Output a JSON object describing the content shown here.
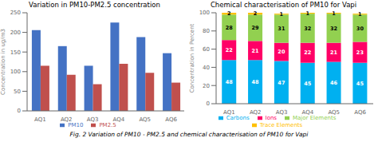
{
  "caption": "Fig. 2 Variation of PM10 - PM2.5 and chemical characterisation of PM10 for Vapi",
  "chart_data": [
    {
      "type": "bar",
      "title": "Variation in PM10-PM2.5 concentration",
      "ylabel": "Concentration in ug/m3",
      "categories": [
        "AQ1",
        "AQ2",
        "AQ3",
        "AQ4",
        "AQ5",
        "AQ6"
      ],
      "series": [
        {
          "name": "PM10",
          "color": "#4472C4",
          "values": [
            206,
            165,
            115,
            225,
            188,
            147
          ]
        },
        {
          "name": "PM2.5",
          "color": "#C0504D",
          "values": [
            115,
            92,
            68,
            120,
            97,
            72
          ]
        }
      ],
      "ylim": [
        0,
        250
      ],
      "yticks": [
        0,
        50,
        100,
        150,
        200,
        250
      ],
      "grid": false,
      "legend": "bottom"
    },
    {
      "type": "bar",
      "title": "Chemical characterisation of PM10 for Vapi",
      "ylabel": "Concentration in Percent",
      "categories": [
        "AQ1",
        "AQ2",
        "AQ3",
        "AQ4",
        "AQ5",
        "AQ6"
      ],
      "series": [
        {
          "name": "Carbons",
          "color": "#00B0F0",
          "values": [
            48,
            48,
            47,
            45,
            46,
            45
          ]
        },
        {
          "name": "Ions",
          "color": "#FF0066",
          "values": [
            22,
            21,
            20,
            22,
            21,
            23
          ]
        },
        {
          "name": "Major Elements",
          "color": "#92D050",
          "values": [
            28,
            29,
            31,
            32,
            32,
            30
          ]
        },
        {
          "name": "Trace Elements",
          "color": "#FFC000",
          "values": [
            2,
            2,
            1,
            1,
            1,
            1
          ]
        }
      ],
      "ylim": [
        0,
        100
      ],
      "yticks": [
        0,
        20,
        40,
        60,
        80,
        100
      ],
      "stacked": true,
      "data_labels": true,
      "grid": false,
      "legend": "bottom"
    }
  ]
}
